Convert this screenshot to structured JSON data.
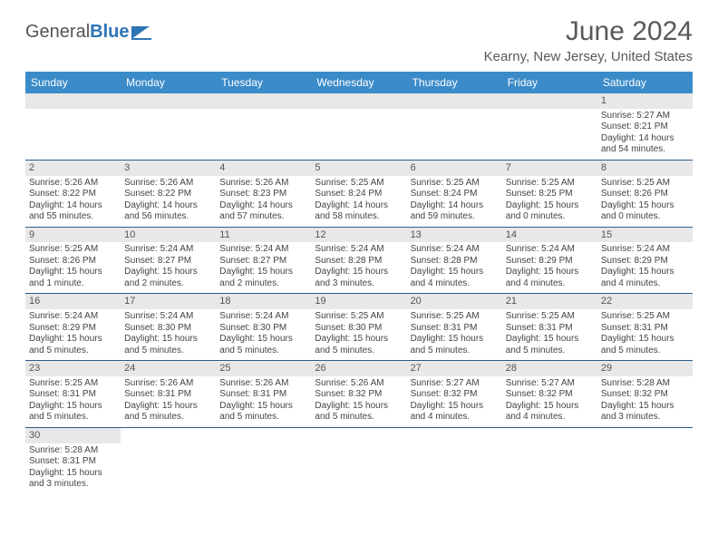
{
  "logo": {
    "part1": "General",
    "part2": "Blue"
  },
  "title": "June 2024",
  "location": "Kearny, New Jersey, United States",
  "colors": {
    "header_bg": "#3b8bc9",
    "header_text": "#ffffff",
    "daynum_bg": "#e8e8e8",
    "row_border": "#2e5c8a",
    "title_color": "#595959"
  },
  "weekdays": [
    "Sunday",
    "Monday",
    "Tuesday",
    "Wednesday",
    "Thursday",
    "Friday",
    "Saturday"
  ],
  "weeks": [
    [
      null,
      null,
      null,
      null,
      null,
      null,
      {
        "n": "1",
        "rise": "Sunrise: 5:27 AM",
        "set": "Sunset: 8:21 PM",
        "d1": "Daylight: 14 hours",
        "d2": "and 54 minutes."
      }
    ],
    [
      {
        "n": "2",
        "rise": "Sunrise: 5:26 AM",
        "set": "Sunset: 8:22 PM",
        "d1": "Daylight: 14 hours",
        "d2": "and 55 minutes."
      },
      {
        "n": "3",
        "rise": "Sunrise: 5:26 AM",
        "set": "Sunset: 8:22 PM",
        "d1": "Daylight: 14 hours",
        "d2": "and 56 minutes."
      },
      {
        "n": "4",
        "rise": "Sunrise: 5:26 AM",
        "set": "Sunset: 8:23 PM",
        "d1": "Daylight: 14 hours",
        "d2": "and 57 minutes."
      },
      {
        "n": "5",
        "rise": "Sunrise: 5:25 AM",
        "set": "Sunset: 8:24 PM",
        "d1": "Daylight: 14 hours",
        "d2": "and 58 minutes."
      },
      {
        "n": "6",
        "rise": "Sunrise: 5:25 AM",
        "set": "Sunset: 8:24 PM",
        "d1": "Daylight: 14 hours",
        "d2": "and 59 minutes."
      },
      {
        "n": "7",
        "rise": "Sunrise: 5:25 AM",
        "set": "Sunset: 8:25 PM",
        "d1": "Daylight: 15 hours",
        "d2": "and 0 minutes."
      },
      {
        "n": "8",
        "rise": "Sunrise: 5:25 AM",
        "set": "Sunset: 8:26 PM",
        "d1": "Daylight: 15 hours",
        "d2": "and 0 minutes."
      }
    ],
    [
      {
        "n": "9",
        "rise": "Sunrise: 5:25 AM",
        "set": "Sunset: 8:26 PM",
        "d1": "Daylight: 15 hours",
        "d2": "and 1 minute."
      },
      {
        "n": "10",
        "rise": "Sunrise: 5:24 AM",
        "set": "Sunset: 8:27 PM",
        "d1": "Daylight: 15 hours",
        "d2": "and 2 minutes."
      },
      {
        "n": "11",
        "rise": "Sunrise: 5:24 AM",
        "set": "Sunset: 8:27 PM",
        "d1": "Daylight: 15 hours",
        "d2": "and 2 minutes."
      },
      {
        "n": "12",
        "rise": "Sunrise: 5:24 AM",
        "set": "Sunset: 8:28 PM",
        "d1": "Daylight: 15 hours",
        "d2": "and 3 minutes."
      },
      {
        "n": "13",
        "rise": "Sunrise: 5:24 AM",
        "set": "Sunset: 8:28 PM",
        "d1": "Daylight: 15 hours",
        "d2": "and 4 minutes."
      },
      {
        "n": "14",
        "rise": "Sunrise: 5:24 AM",
        "set": "Sunset: 8:29 PM",
        "d1": "Daylight: 15 hours",
        "d2": "and 4 minutes."
      },
      {
        "n": "15",
        "rise": "Sunrise: 5:24 AM",
        "set": "Sunset: 8:29 PM",
        "d1": "Daylight: 15 hours",
        "d2": "and 4 minutes."
      }
    ],
    [
      {
        "n": "16",
        "rise": "Sunrise: 5:24 AM",
        "set": "Sunset: 8:29 PM",
        "d1": "Daylight: 15 hours",
        "d2": "and 5 minutes."
      },
      {
        "n": "17",
        "rise": "Sunrise: 5:24 AM",
        "set": "Sunset: 8:30 PM",
        "d1": "Daylight: 15 hours",
        "d2": "and 5 minutes."
      },
      {
        "n": "18",
        "rise": "Sunrise: 5:24 AM",
        "set": "Sunset: 8:30 PM",
        "d1": "Daylight: 15 hours",
        "d2": "and 5 minutes."
      },
      {
        "n": "19",
        "rise": "Sunrise: 5:25 AM",
        "set": "Sunset: 8:30 PM",
        "d1": "Daylight: 15 hours",
        "d2": "and 5 minutes."
      },
      {
        "n": "20",
        "rise": "Sunrise: 5:25 AM",
        "set": "Sunset: 8:31 PM",
        "d1": "Daylight: 15 hours",
        "d2": "and 5 minutes."
      },
      {
        "n": "21",
        "rise": "Sunrise: 5:25 AM",
        "set": "Sunset: 8:31 PM",
        "d1": "Daylight: 15 hours",
        "d2": "and 5 minutes."
      },
      {
        "n": "22",
        "rise": "Sunrise: 5:25 AM",
        "set": "Sunset: 8:31 PM",
        "d1": "Daylight: 15 hours",
        "d2": "and 5 minutes."
      }
    ],
    [
      {
        "n": "23",
        "rise": "Sunrise: 5:25 AM",
        "set": "Sunset: 8:31 PM",
        "d1": "Daylight: 15 hours",
        "d2": "and 5 minutes."
      },
      {
        "n": "24",
        "rise": "Sunrise: 5:26 AM",
        "set": "Sunset: 8:31 PM",
        "d1": "Daylight: 15 hours",
        "d2": "and 5 minutes."
      },
      {
        "n": "25",
        "rise": "Sunrise: 5:26 AM",
        "set": "Sunset: 8:31 PM",
        "d1": "Daylight: 15 hours",
        "d2": "and 5 minutes."
      },
      {
        "n": "26",
        "rise": "Sunrise: 5:26 AM",
        "set": "Sunset: 8:32 PM",
        "d1": "Daylight: 15 hours",
        "d2": "and 5 minutes."
      },
      {
        "n": "27",
        "rise": "Sunrise: 5:27 AM",
        "set": "Sunset: 8:32 PM",
        "d1": "Daylight: 15 hours",
        "d2": "and 4 minutes."
      },
      {
        "n": "28",
        "rise": "Sunrise: 5:27 AM",
        "set": "Sunset: 8:32 PM",
        "d1": "Daylight: 15 hours",
        "d2": "and 4 minutes."
      },
      {
        "n": "29",
        "rise": "Sunrise: 5:28 AM",
        "set": "Sunset: 8:32 PM",
        "d1": "Daylight: 15 hours",
        "d2": "and 3 minutes."
      }
    ],
    [
      {
        "n": "30",
        "rise": "Sunrise: 5:28 AM",
        "set": "Sunset: 8:31 PM",
        "d1": "Daylight: 15 hours",
        "d2": "and 3 minutes."
      },
      null,
      null,
      null,
      null,
      null,
      null
    ]
  ]
}
